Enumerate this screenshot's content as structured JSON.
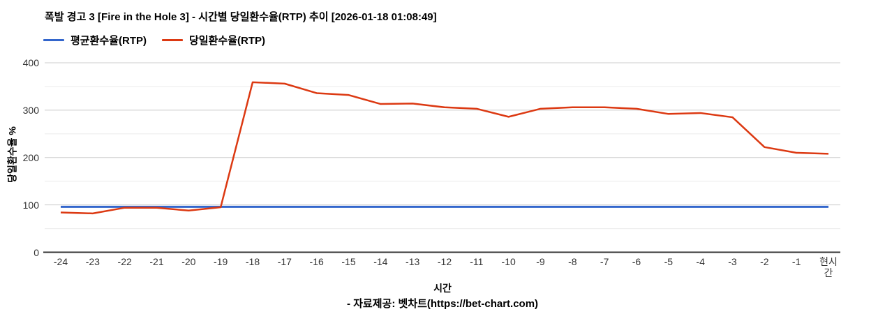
{
  "header": {
    "title": "폭발 경고 3 [Fire in the Hole 3] - 시간별 당일환수율(RTP) 추이 [2026-01-18 01:08:49]"
  },
  "footer": {
    "source": "- 자료제공: 벳차트(https://bet-chart.com)"
  },
  "chart_data": {
    "type": "line",
    "title": "폭발 경고 3 [Fire in the Hole 3] - 시간별 당일환수율(RTP) 추이 [2026-01-18 01:08:49]",
    "xlabel": "시간",
    "ylabel": "당일환수율 %",
    "ylim": [
      0,
      400
    ],
    "y_major_ticks": [
      0,
      100,
      200,
      300,
      400
    ],
    "y_minor_ticks": [
      50,
      150,
      250,
      350
    ],
    "grid": true,
    "legend_position": "top-left",
    "categories": [
      "-24",
      "-23",
      "-22",
      "-21",
      "-20",
      "-19",
      "-18",
      "-17",
      "-16",
      "-15",
      "-14",
      "-13",
      "-12",
      "-11",
      "-10",
      "-9",
      "-8",
      "-7",
      "-6",
      "-5",
      "-4",
      "-3",
      "-2",
      "-1",
      "현시간"
    ],
    "series": [
      {
        "name": "평균환수율(RTP)",
        "color": "#3366CC",
        "values": [
          96,
          96,
          96,
          96,
          96,
          96,
          96,
          96,
          96,
          96,
          96,
          96,
          96,
          96,
          96,
          96,
          96,
          96,
          96,
          96,
          96,
          96,
          96,
          96,
          96
        ]
      },
      {
        "name": "당일환수율(RTP)",
        "color": "#DC3912",
        "values": [
          84,
          82,
          94,
          94,
          88,
          95,
          359,
          356,
          336,
          332,
          313,
          314,
          306,
          303,
          286,
          303,
          306,
          306,
          303,
          292,
          294,
          285,
          222,
          210,
          208
        ]
      }
    ],
    "colors": {
      "minor_grid": "#ebebeb",
      "major_grid": "#cccccc",
      "baseline": "#333333",
      "tick_text": "#333333",
      "text": "#000000",
      "background": "#ffffff"
    }
  }
}
